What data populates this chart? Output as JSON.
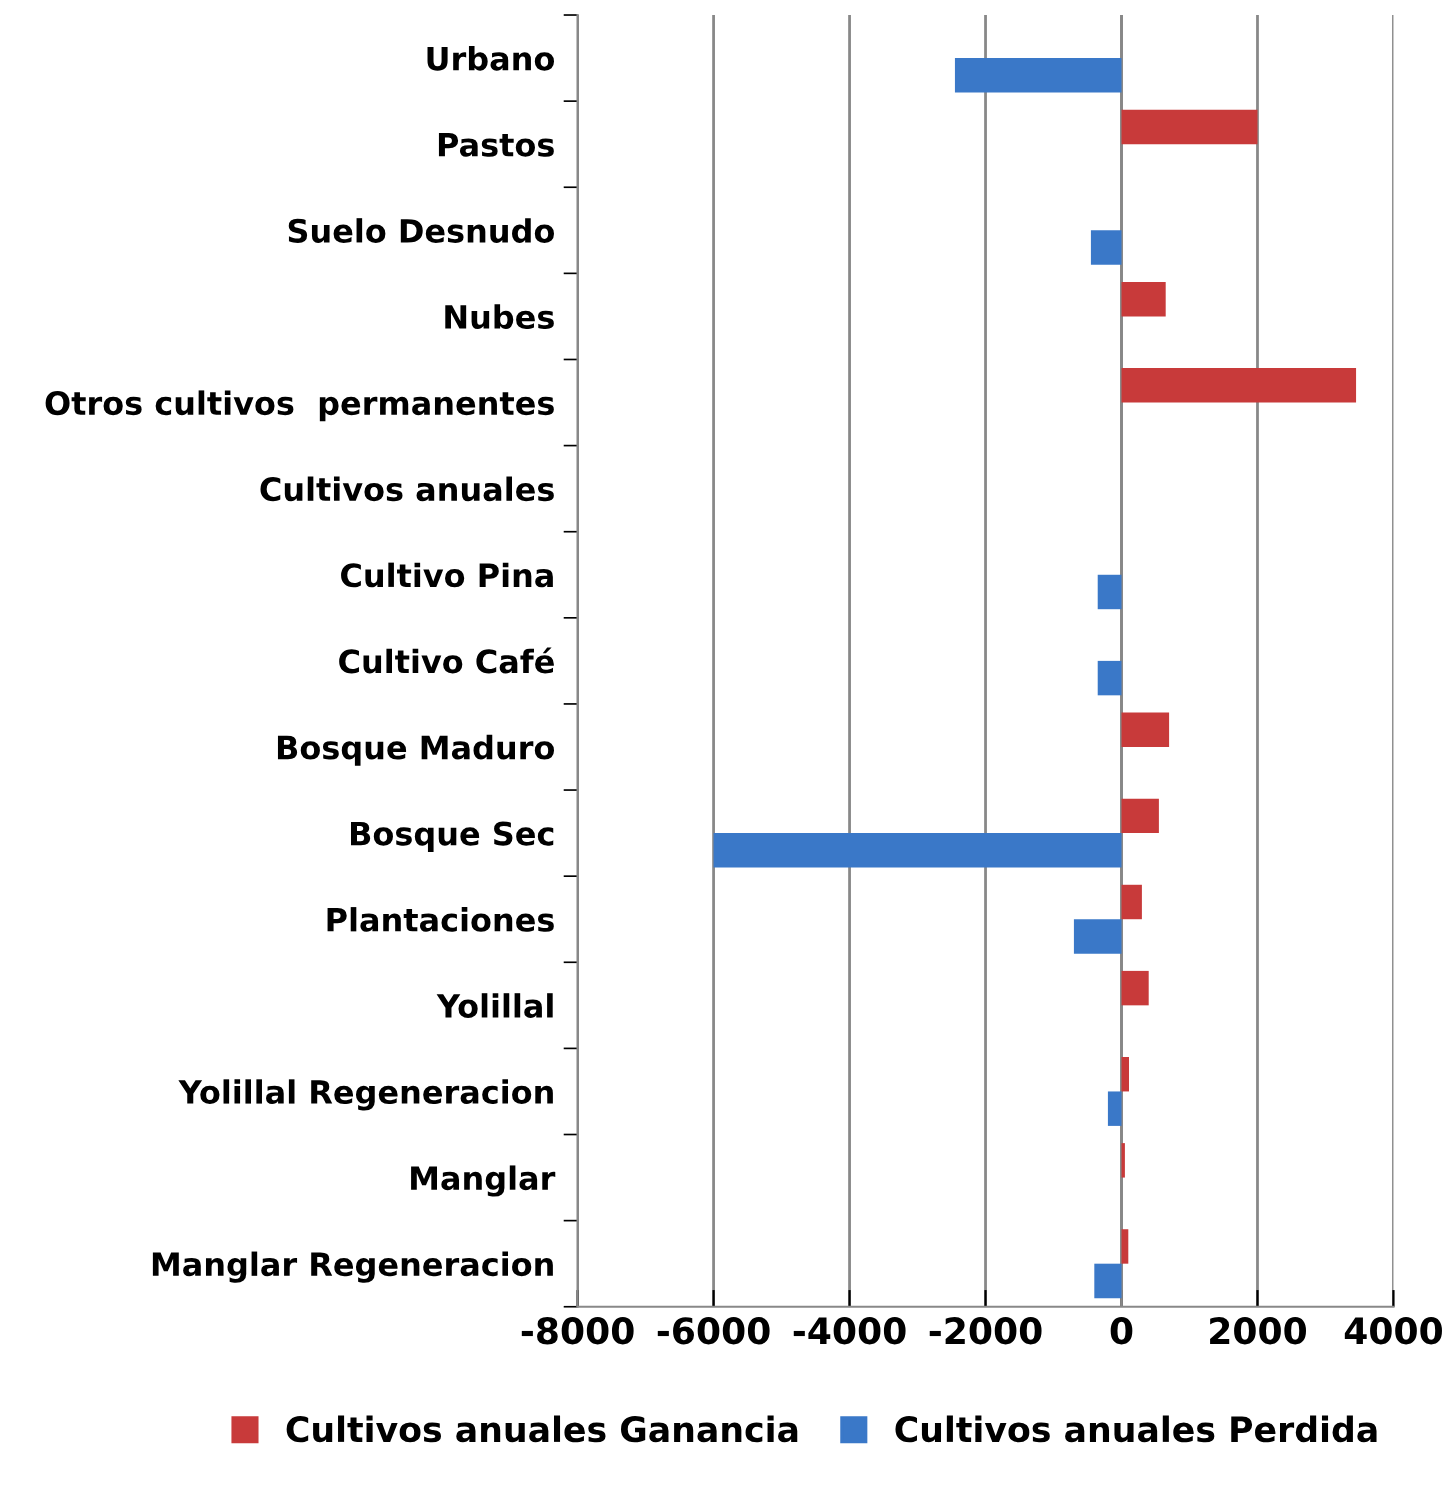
{
  "chart_data": {
    "type": "bar",
    "orientation": "horizontal",
    "categories": [
      "Urbano",
      "Pastos",
      "Suelo Desnudo",
      "Nubes",
      "Otros cultivos  permanentes",
      "Cultivos anuales",
      "Cultivo Pina",
      "Cultivo Café",
      "Bosque Maduro",
      "Bosque Sec",
      "Plantaciones",
      "Yolillal",
      "Yolillal Regeneracion",
      "Manglar",
      "Manglar Regeneracion"
    ],
    "series": [
      {
        "name": "Cultivos anuales Ganancia",
        "color": "#c83a3a",
        "values": [
          null,
          2000,
          null,
          650,
          3450,
          null,
          null,
          null,
          700,
          550,
          300,
          400,
          110,
          50,
          100
        ]
      },
      {
        "name": "Cultivos anuales Perdida",
        "color": "#3a78c8",
        "values": [
          -2450,
          null,
          -450,
          null,
          null,
          null,
          -350,
          -350,
          null,
          -6000,
          -700,
          null,
          -200,
          null,
          -400
        ]
      }
    ],
    "xlim": [
      -8000,
      4000
    ],
    "xticks": [
      -8000,
      -6000,
      -4000,
      -2000,
      0,
      2000,
      4000
    ],
    "grid": "x",
    "legend": "bottom"
  }
}
